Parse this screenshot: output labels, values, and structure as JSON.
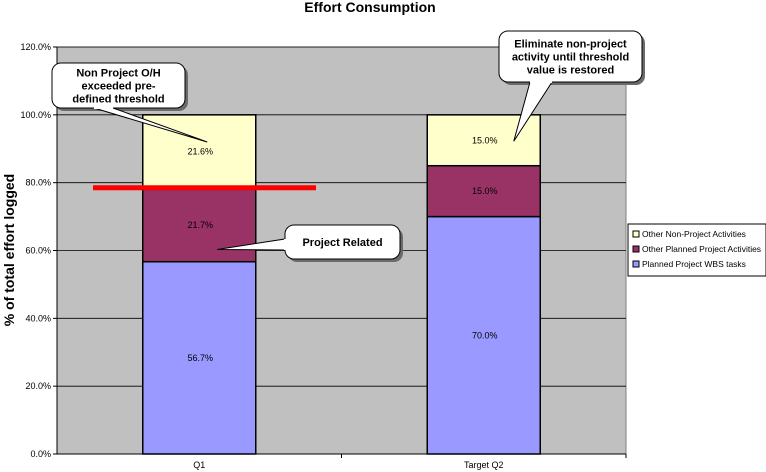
{
  "chart_data": {
    "type": "bar",
    "stacked": true,
    "title": "Effort Consumption",
    "ylabel": "% of total effort logged",
    "xlabel": "",
    "ylim": [
      0,
      120
    ],
    "yticks": [
      "0.0%",
      "20.0%",
      "40.0%",
      "60.0%",
      "80.0%",
      "100.0%",
      "120.0%"
    ],
    "categories": [
      "Q1",
      "Target Q2"
    ],
    "series": [
      {
        "name": "Planned Project WBS tasks",
        "values": [
          56.7,
          70.0
        ],
        "labels": [
          "56.7%",
          "70.0%"
        ],
        "color": "#9999ff"
      },
      {
        "name": "Other Planned Project Activities",
        "values": [
          21.7,
          15.0
        ],
        "labels": [
          "21.7%",
          "15.0%"
        ],
        "color": "#993366"
      },
      {
        "name": "Other Non-Project Activities",
        "values": [
          21.6,
          15.0
        ],
        "labels": [
          "21.6%",
          "15.0%"
        ],
        "color": "#ffffcc"
      }
    ],
    "legend_order": [
      "Other Non-Project Activities",
      "Other Planned Project Activities",
      "Planned Project WBS tasks"
    ],
    "legend_position": "right",
    "plot_background": "#c0c0c0",
    "threshold": {
      "value": 78.5,
      "color": "#ff0000"
    },
    "callouts": [
      {
        "lines": [
          "Non Project O/H",
          "exceeded pre-",
          "defined threshold"
        ]
      },
      {
        "lines": [
          "Project Related"
        ]
      },
      {
        "lines": [
          "Eliminate non-project",
          "activity until threshold",
          "value is restored"
        ]
      }
    ]
  }
}
